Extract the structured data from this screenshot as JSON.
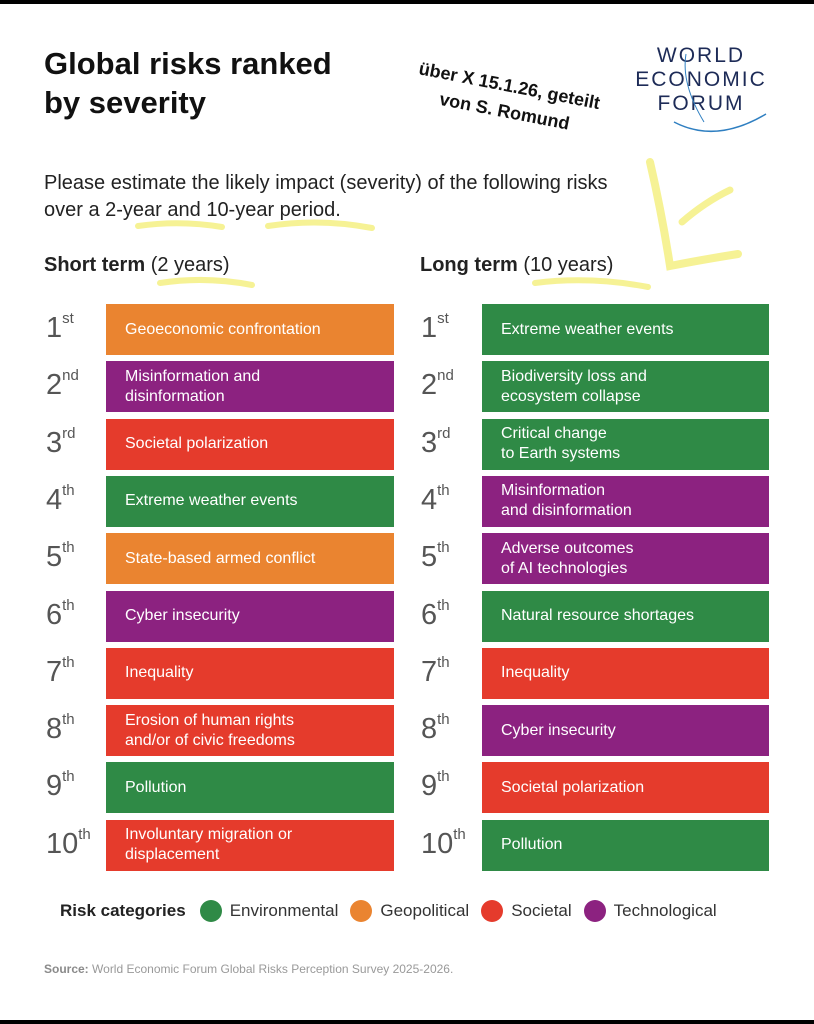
{
  "title": {
    "line1": "Global risks ranked",
    "line2": "by severity"
  },
  "annotation": {
    "line1": "über X 15.1.26, geteilt",
    "line2": "von S. Romund"
  },
  "logo": {
    "line1": "WORLD",
    "line2": "ECONOMIC",
    "line3": "FORUM"
  },
  "subtitle": "Please estimate the likely impact (severity) of the following risks over a 2-year and 10-year period.",
  "short_term": {
    "label": "Short term",
    "span": "(2 years)"
  },
  "long_term": {
    "label": "Long term",
    "span": "(10 years)"
  },
  "ranks": [
    {
      "num": "1",
      "suffix": "st"
    },
    {
      "num": "2",
      "suffix": "nd"
    },
    {
      "num": "3",
      "suffix": "rd"
    },
    {
      "num": "4",
      "suffix": "th"
    },
    {
      "num": "5",
      "suffix": "th"
    },
    {
      "num": "6",
      "suffix": "th"
    },
    {
      "num": "7",
      "suffix": "th"
    },
    {
      "num": "8",
      "suffix": "th"
    },
    {
      "num": "9",
      "suffix": "th"
    },
    {
      "num": "10",
      "suffix": "th"
    }
  ],
  "categories": {
    "Environmental": "#2f8a46",
    "Geopolitical": "#ea8430",
    "Societal": "#e53b2c",
    "Technological": "#8c2280"
  },
  "short_term_risks": [
    {
      "label": "Geoeconomic confrontation",
      "category": "Geopolitical"
    },
    {
      "label": "Misinformation and\ndisinformation",
      "category": "Technological"
    },
    {
      "label": "Societal polarization",
      "category": "Societal"
    },
    {
      "label": "Extreme weather events",
      "category": "Environmental"
    },
    {
      "label": "State-based armed conflict",
      "category": "Geopolitical"
    },
    {
      "label": "Cyber insecurity",
      "category": "Technological"
    },
    {
      "label": "Inequality",
      "category": "Societal"
    },
    {
      "label": "Erosion of human rights\nand/or of civic freedoms",
      "category": "Societal"
    },
    {
      "label": "Pollution",
      "category": "Environmental"
    },
    {
      "label": "Involuntary migration or\ndisplacement",
      "category": "Societal"
    }
  ],
  "long_term_risks": [
    {
      "label": "Extreme weather events",
      "category": "Environmental"
    },
    {
      "label": "Biodiversity loss and\necosystem collapse",
      "category": "Environmental"
    },
    {
      "label": "Critical change\nto Earth systems",
      "category": "Environmental"
    },
    {
      "label": "Misinformation\nand disinformation",
      "category": "Technological"
    },
    {
      "label": "Adverse outcomes\nof AI technologies",
      "category": "Technological"
    },
    {
      "label": "Natural resource shortages",
      "category": "Environmental"
    },
    {
      "label": "Inequality",
      "category": "Societal"
    },
    {
      "label": "Cyber insecurity",
      "category": "Technological"
    },
    {
      "label": "Societal polarization",
      "category": "Societal"
    },
    {
      "label": "Pollution",
      "category": "Environmental"
    }
  ],
  "legend": {
    "label": "Risk categories",
    "items": [
      {
        "name": "Environmental",
        "color": "#2f8a46"
      },
      {
        "name": "Geopolitical",
        "color": "#ea8430"
      },
      {
        "name": "Societal",
        "color": "#e53b2c"
      },
      {
        "name": "Technological",
        "color": "#8c2280"
      }
    ]
  },
  "source": {
    "label": "Source:",
    "text": "World Economic Forum Global Risks Perception Survey 2025-2026."
  },
  "highlight_color": "#f4ef7a"
}
